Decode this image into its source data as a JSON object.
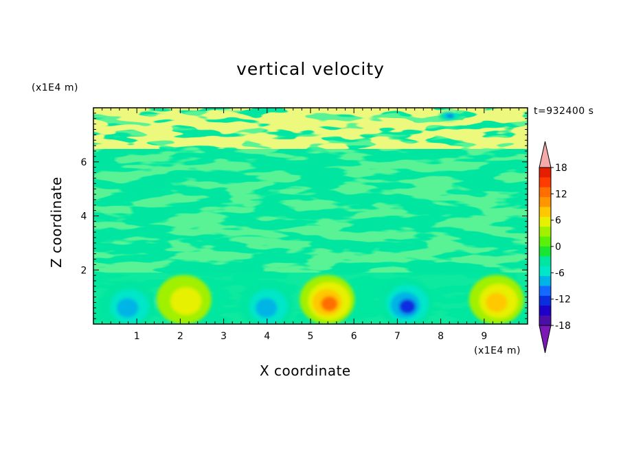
{
  "chart_data": {
    "type": "heatmap",
    "title": "vertical velocity",
    "xlabel": "X coordinate",
    "ylabel": "Z coordinate",
    "x_unit_label": "(x1E4 m)",
    "y_unit_label": "(x1E4 m)",
    "time_label": "t=932400 s",
    "xlim": [
      0,
      10
    ],
    "ylim": [
      0,
      8
    ],
    "x_ticks": [
      "1",
      "2",
      "3",
      "4",
      "5",
      "6",
      "7",
      "8",
      "9"
    ],
    "y_ticks": [
      "2",
      "4",
      "6"
    ],
    "colorbar": {
      "tick_labels": [
        "18",
        "12",
        "6",
        "0",
        "-6",
        "-12",
        "-18"
      ],
      "tick_values": [
        18,
        12,
        6,
        0,
        -6,
        -12,
        -18
      ],
      "range": [
        -21,
        21
      ],
      "extend": "both",
      "colors": [
        "#7a19b5",
        "#4b0fa8",
        "#1e00c8",
        "#0a2de0",
        "#1469ff",
        "#00b4e6",
        "#00e6c8",
        "#00e6a0",
        "#19e632",
        "#5af00a",
        "#a0f000",
        "#e6f000",
        "#ffc800",
        "#ff9600",
        "#ff6e00",
        "#ff3c00",
        "#e61e00",
        "#f5aaaa"
      ]
    },
    "cells": [
      {
        "x": 0.8,
        "z": 0.7,
        "value": -11
      },
      {
        "x": 2.1,
        "z": 0.9,
        "value": 6
      },
      {
        "x": 4.0,
        "z": 0.7,
        "value": -11
      },
      {
        "x": 5.4,
        "z": 0.9,
        "value": 12
      },
      {
        "x": 7.2,
        "z": 0.8,
        "value": -12
      },
      {
        "x": 9.3,
        "z": 0.9,
        "value": 11
      },
      {
        "x": 8.2,
        "z": 7.7,
        "value": -12
      }
    ]
  }
}
